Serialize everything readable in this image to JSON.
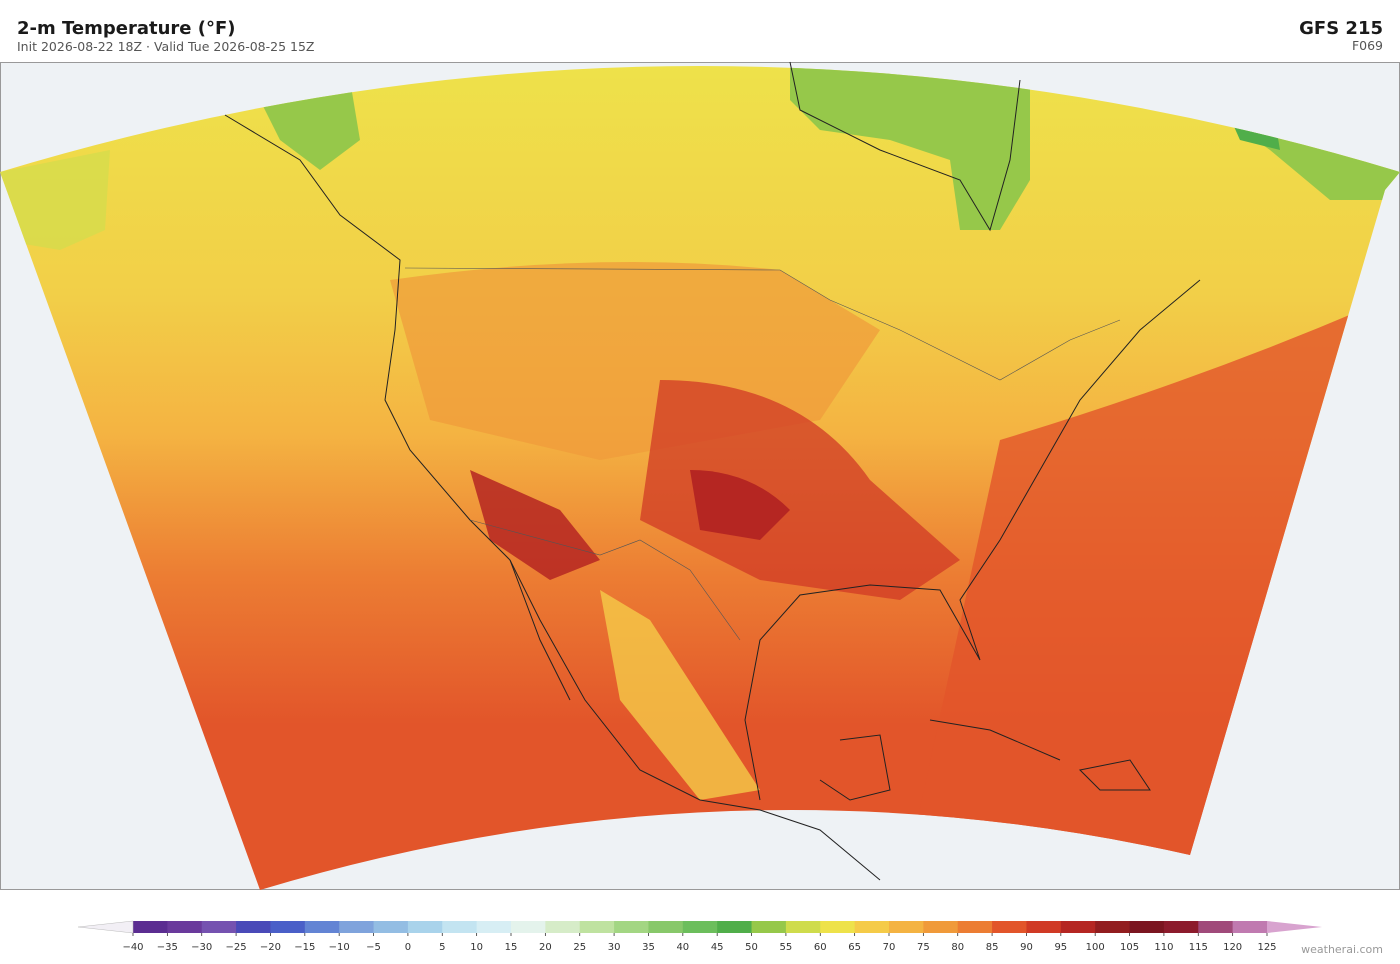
{
  "header": {
    "title": "2-m Temperature  (°F)",
    "subtitle": "Init 2026-08-22 18Z  ·  Valid Tue 2026-08-25 15Z",
    "model": "GFS  215",
    "forecast_hour": "F069"
  },
  "colorbar": {
    "ticks": [
      {
        "value": -40,
        "label": "−40"
      },
      {
        "value": -35,
        "label": "−35"
      },
      {
        "value": -30,
        "label": "−30"
      },
      {
        "value": -25,
        "label": "−25"
      },
      {
        "value": -20,
        "label": "−20"
      },
      {
        "value": -15,
        "label": "−15"
      },
      {
        "value": -10,
        "label": "−10"
      },
      {
        "value": -5,
        "label": "−5"
      },
      0,
      5,
      10,
      15,
      20,
      25,
      30,
      35,
      40,
      45,
      50,
      55,
      60,
      65,
      70,
      75,
      80,
      85,
      90,
      95,
      100,
      105,
      110,
      115,
      120,
      125
    ],
    "colors": [
      "#5b2d91",
      "#6a3a9c",
      "#7552b0",
      "#4a4ab8",
      "#4a5fc8",
      "#6384d4",
      "#7fa3dc",
      "#93bde3",
      "#a9d3eb",
      "#c3e4f1",
      "#d7eef4",
      "#e4f3ec",
      "#d6ecc8",
      "#bfe2a0",
      "#a3d683",
      "#88c86a",
      "#6cbe5c",
      "#50ae4a",
      "#96c84a",
      "#cfdc4c",
      "#eee24a",
      "#f5cb48",
      "#f4b342",
      "#f09a3a",
      "#ec7d33",
      "#e2552a",
      "#d03a25",
      "#b52622",
      "#921d1f",
      "#7b1520",
      "#8c1b2c",
      "#a04a7a",
      "#c07ab0"
    ],
    "under_color": "#f2eff5",
    "over_color": "#d8a3cf"
  },
  "credit": "weatherai.com"
}
